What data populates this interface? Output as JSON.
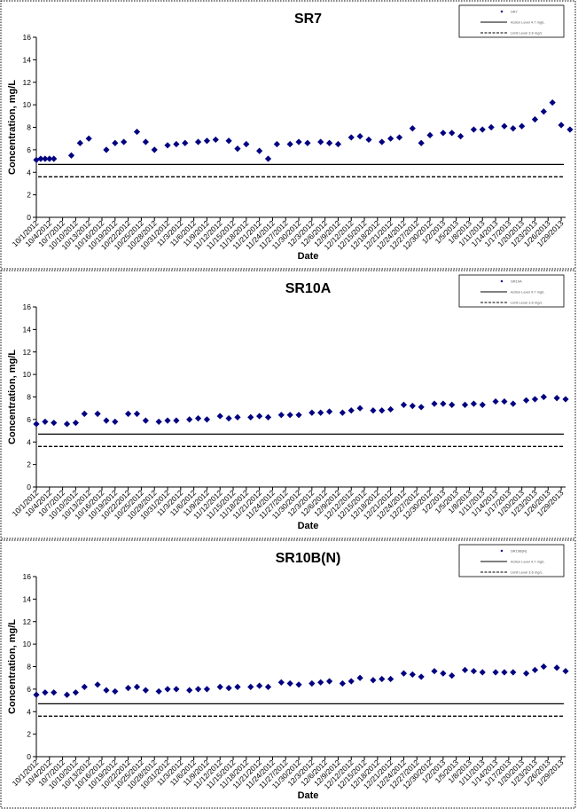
{
  "chart_data": [
    {
      "type": "scatter",
      "title": "SR7",
      "xlabel": "Date",
      "ylabel": "Concentration, mg/L",
      "ylim": [
        0,
        16
      ],
      "yticks": [
        "0",
        "2",
        "4",
        "6",
        "8",
        "10",
        "12",
        "14",
        "16"
      ],
      "grid": false,
      "legend_position": "top-right",
      "xtick_labels": [
        "10/1/2012",
        "10/4/2012",
        "10/7/2012",
        "10/10/2012",
        "10/13/2012",
        "10/16/2012",
        "10/19/2012",
        "10/22/2012",
        "10/25/2012",
        "10/28/2012",
        "10/31/2012",
        "11/3/2012",
        "11/6/2012",
        "11/9/2012",
        "11/12/2012",
        "11/15/2012",
        "11/18/2012",
        "11/21/2012",
        "11/24/2012",
        "11/27/2012",
        "11/30/2012",
        "12/3/2012",
        "12/6/2012",
        "12/9/2012",
        "12/12/2012",
        "12/15/2012",
        "12/18/2012",
        "12/21/2012",
        "12/24/2012",
        "12/27/2012",
        "12/30/2012",
        "1/2/2013",
        "1/5/2013",
        "1/8/2013",
        "1/11/2013",
        "1/14/2013",
        "1/17/2013",
        "1/20/2013",
        "1/23/2013",
        "1/26/2013",
        "1/29/2013"
      ],
      "x_range": [
        "10/1/2012",
        "1/30/2013"
      ],
      "series": [
        {
          "name": "SR7",
          "marker": "diamond",
          "color": "#000080",
          "x": [
            "10/1/2012",
            "10/2/2012",
            "10/3/2012",
            "10/4/2012",
            "10/5/2012",
            "10/9/2012",
            "10/11/2012",
            "10/13/2012",
            "10/17/2012",
            "10/19/2012",
            "10/21/2012",
            "10/24/2012",
            "10/26/2012",
            "10/28/2012",
            "10/31/2012",
            "11/2/2012",
            "11/4/2012",
            "11/7/2012",
            "11/9/2012",
            "11/11/2012",
            "11/14/2012",
            "11/16/2012",
            "11/18/2012",
            "11/21/2012",
            "11/23/2012",
            "11/25/2012",
            "11/28/2012",
            "11/30/2012",
            "12/2/2012",
            "12/5/2012",
            "12/7/2012",
            "12/9/2012",
            "12/12/2012",
            "12/14/2012",
            "12/16/2012",
            "12/19/2012",
            "12/21/2012",
            "12/23/2012",
            "12/26/2012",
            "12/28/2012",
            "12/30/2012",
            "1/2/2013",
            "1/4/2013",
            "1/6/2013",
            "1/9/2013",
            "1/11/2013",
            "1/13/2013",
            "1/16/2013",
            "1/18/2013",
            "1/20/2013",
            "1/23/2013",
            "1/25/2013",
            "1/27/2013",
            "1/29/2013",
            "1/31/2013"
          ],
          "y": [
            5.1,
            5.2,
            5.2,
            5.2,
            5.2,
            5.5,
            6.6,
            7.0,
            6.0,
            6.6,
            6.7,
            7.6,
            6.7,
            6.0,
            6.4,
            6.5,
            6.6,
            6.7,
            6.8,
            6.9,
            6.8,
            6.1,
            6.5,
            5.9,
            5.2,
            6.5,
            6.5,
            6.7,
            6.6,
            6.7,
            6.6,
            6.5,
            7.1,
            7.2,
            6.9,
            6.7,
            7.0,
            7.1,
            7.9,
            6.6,
            7.3,
            7.5,
            7.5,
            7.2,
            7.8,
            7.8,
            8.0,
            8.1,
            7.9,
            8.1,
            8.7,
            9.4,
            10.2,
            8.2,
            7.8
          ]
        },
        {
          "name": "Action Level 4.7 mg/L",
          "type": "line",
          "style": "solid",
          "y": 4.7
        },
        {
          "name": "Limit Level 3.6 mg/L",
          "type": "line",
          "style": "dashed",
          "y": 3.6
        }
      ]
    },
    {
      "type": "scatter",
      "title": "SR10A",
      "xlabel": "Date",
      "ylabel": "Concentration, mg/L",
      "ylim": [
        0,
        16
      ],
      "yticks": [
        "0",
        "2",
        "4",
        "6",
        "8",
        "10",
        "12",
        "14",
        "16"
      ],
      "grid": false,
      "legend_position": "top-right",
      "xtick_labels": [
        "10/1/2012",
        "10/4/2012",
        "10/7/2012",
        "10/10/2012",
        "10/13/2012",
        "10/16/2012",
        "10/19/2012",
        "10/22/2012",
        "10/25/2012",
        "10/28/2012",
        "10/31/2012",
        "11/3/2012",
        "11/6/2012",
        "11/9/2012",
        "11/12/2012",
        "11/15/2012",
        "11/18/2012",
        "11/21/2012",
        "11/24/2012",
        "11/27/2012",
        "11/30/2012",
        "12/3/2012",
        "12/6/2012",
        "12/9/2012",
        "12/12/2012",
        "12/15/2012",
        "12/18/2012",
        "12/21/2012",
        "12/24/2012",
        "12/27/2012",
        "12/30/2012",
        "1/2/2013",
        "1/5/2013",
        "1/8/2013",
        "1/11/2013",
        "1/14/2013",
        "1/17/2013",
        "1/20/2013",
        "1/23/2013",
        "1/26/2013",
        "1/29/2013"
      ],
      "x_range": [
        "10/1/2012",
        "1/30/2013"
      ],
      "series": [
        {
          "name": "SR10A",
          "marker": "diamond",
          "color": "#000080",
          "x": [
            "10/1/2012",
            "10/3/2012",
            "10/5/2012",
            "10/8/2012",
            "10/10/2012",
            "10/12/2012",
            "10/15/2012",
            "10/17/2012",
            "10/19/2012",
            "10/22/2012",
            "10/24/2012",
            "10/26/2012",
            "10/29/2012",
            "10/31/2012",
            "11/2/2012",
            "11/5/2012",
            "11/7/2012",
            "11/9/2012",
            "11/12/2012",
            "11/14/2012",
            "11/16/2012",
            "11/19/2012",
            "11/21/2012",
            "11/23/2012",
            "11/26/2012",
            "11/28/2012",
            "11/30/2012",
            "12/3/2012",
            "12/5/2012",
            "12/7/2012",
            "12/10/2012",
            "12/12/2012",
            "12/14/2012",
            "12/17/2012",
            "12/19/2012",
            "12/21/2012",
            "12/24/2012",
            "12/26/2012",
            "12/28/2012",
            "12/31/2012",
            "1/2/2013",
            "1/4/2013",
            "1/7/2013",
            "1/9/2013",
            "1/11/2013",
            "1/14/2013",
            "1/16/2013",
            "1/18/2013",
            "1/21/2013",
            "1/23/2013",
            "1/25/2013",
            "1/28/2013",
            "1/30/2013"
          ],
          "y": [
            5.6,
            5.8,
            5.7,
            5.6,
            5.7,
            6.5,
            6.5,
            5.9,
            5.8,
            6.5,
            6.5,
            5.9,
            5.8,
            5.9,
            5.9,
            6.0,
            6.1,
            6.0,
            6.3,
            6.1,
            6.2,
            6.2,
            6.3,
            6.2,
            6.4,
            6.4,
            6.4,
            6.6,
            6.6,
            6.7,
            6.6,
            6.8,
            7.0,
            6.8,
            6.8,
            6.9,
            7.3,
            7.2,
            7.1,
            7.4,
            7.4,
            7.3,
            7.3,
            7.4,
            7.3,
            7.6,
            7.6,
            7.4,
            7.7,
            7.8,
            8.0,
            7.9,
            7.8
          ]
        },
        {
          "name": "Action Level 4.7 mg/L",
          "type": "line",
          "style": "solid",
          "y": 4.7
        },
        {
          "name": "Limit Level 3.6 mg/L",
          "type": "line",
          "style": "dashed",
          "y": 3.6
        }
      ]
    },
    {
      "type": "scatter",
      "title": "SR10B(N)",
      "xlabel": "Date",
      "ylabel": "Concentration, mg/L",
      "ylim": [
        0,
        16
      ],
      "yticks": [
        "0",
        "2",
        "4",
        "6",
        "8",
        "10",
        "12",
        "14",
        "16"
      ],
      "grid": false,
      "legend_position": "top-right",
      "xtick_labels": [
        "10/1/2012",
        "10/4/2012",
        "10/7/2012",
        "10/10/2012",
        "10/13/2012",
        "10/16/2012",
        "10/19/2012",
        "10/22/2012",
        "10/25/2012",
        "10/28/2012",
        "10/31/2012",
        "11/3/2012",
        "11/6/2012",
        "11/9/2012",
        "11/12/2012",
        "11/15/2012",
        "11/18/2012",
        "11/21/2012",
        "11/24/2012",
        "11/27/2012",
        "11/30/2012",
        "12/3/2012",
        "12/6/2012",
        "12/9/2012",
        "12/12/2012",
        "12/15/2012",
        "12/18/2012",
        "12/21/2012",
        "12/24/2012",
        "12/27/2012",
        "12/30/2012",
        "1/2/2013",
        "1/5/2013",
        "1/8/2013",
        "1/11/2013",
        "1/14/2013",
        "1/17/2013",
        "1/20/2013",
        "1/23/2013",
        "1/26/2013",
        "1/29/2013"
      ],
      "x_range": [
        "10/1/2012",
        "1/30/2013"
      ],
      "series": [
        {
          "name": "SR10B(N)",
          "marker": "diamond",
          "color": "#000080",
          "x": [
            "10/1/2012",
            "10/3/2012",
            "10/5/2012",
            "10/8/2012",
            "10/10/2012",
            "10/12/2012",
            "10/15/2012",
            "10/17/2012",
            "10/19/2012",
            "10/22/2012",
            "10/24/2012",
            "10/26/2012",
            "10/29/2012",
            "10/31/2012",
            "11/2/2012",
            "11/5/2012",
            "11/7/2012",
            "11/9/2012",
            "11/12/2012",
            "11/14/2012",
            "11/16/2012",
            "11/19/2012",
            "11/21/2012",
            "11/23/2012",
            "11/26/2012",
            "11/28/2012",
            "11/30/2012",
            "12/3/2012",
            "12/5/2012",
            "12/7/2012",
            "12/10/2012",
            "12/12/2012",
            "12/14/2012",
            "12/17/2012",
            "12/19/2012",
            "12/21/2012",
            "12/24/2012",
            "12/26/2012",
            "12/28/2012",
            "12/31/2012",
            "1/2/2013",
            "1/4/2013",
            "1/7/2013",
            "1/9/2013",
            "1/11/2013",
            "1/14/2013",
            "1/16/2013",
            "1/18/2013",
            "1/21/2013",
            "1/23/2013",
            "1/25/2013",
            "1/28/2013",
            "1/30/2013"
          ],
          "y": [
            5.5,
            5.7,
            5.7,
            5.5,
            5.7,
            6.2,
            6.4,
            5.9,
            5.8,
            6.1,
            6.2,
            5.9,
            5.8,
            6.0,
            6.0,
            5.9,
            6.0,
            6.0,
            6.2,
            6.1,
            6.2,
            6.2,
            6.3,
            6.2,
            6.6,
            6.5,
            6.4,
            6.5,
            6.6,
            6.7,
            6.5,
            6.7,
            7.0,
            6.8,
            6.9,
            6.9,
            7.4,
            7.3,
            7.1,
            7.6,
            7.4,
            7.2,
            7.7,
            7.6,
            7.5,
            7.5,
            7.5,
            7.5,
            7.4,
            7.7,
            8.0,
            7.9,
            7.6
          ]
        },
        {
          "name": "Action Level 4.7 mg/L",
          "type": "line",
          "style": "solid",
          "y": 4.7
        },
        {
          "name": "Limit Level 3.6 mg/L",
          "type": "line",
          "style": "dashed",
          "y": 3.6
        }
      ]
    }
  ]
}
